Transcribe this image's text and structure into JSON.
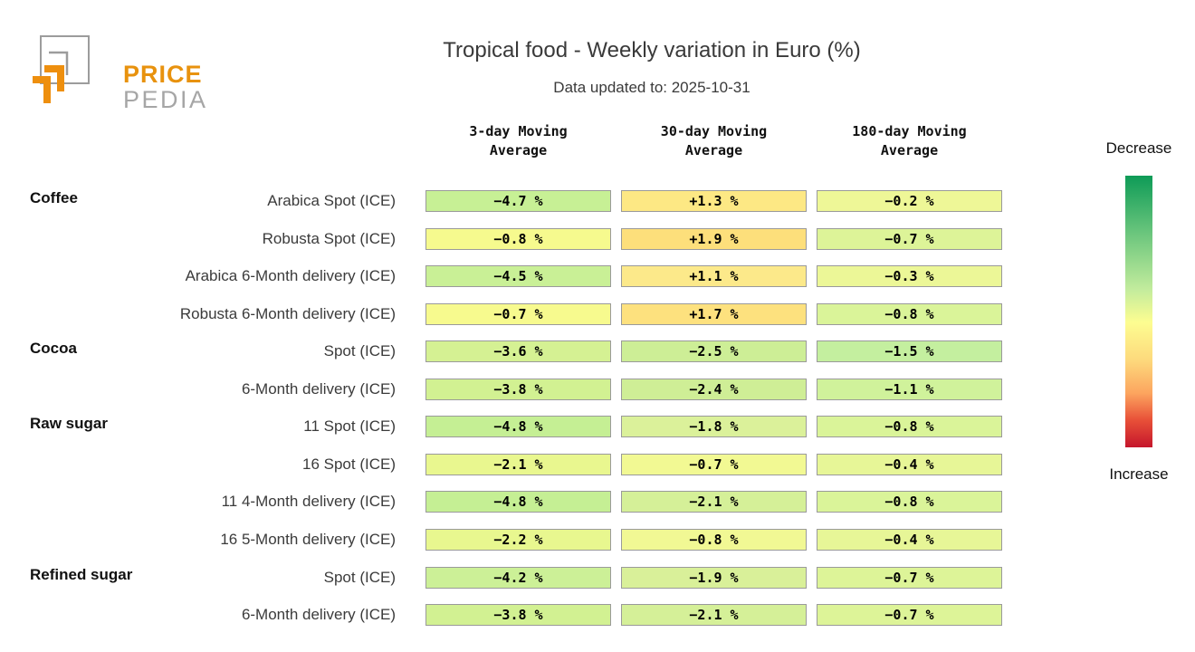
{
  "logo": {
    "brand_top": "PRICE",
    "brand_bottom": "PEDIA",
    "brand_color": "#e8920e",
    "brand_gray": "#a6a6a6"
  },
  "header": {
    "title": "Tropical food - Weekly variation in Euro (%)",
    "subtitle": "Data updated to: 2025-10-31"
  },
  "legend": {
    "top_label": "Decrease",
    "bottom_label": "Increase",
    "gradient_stops": [
      "#0e9b57 0%",
      "#6ec77e 22%",
      "#c3ec9d 42%",
      "#fdfd91 54%",
      "#fdd97c 68%",
      "#fca55f 80%",
      "#e85038 90%",
      "#c5162c 100%"
    ]
  },
  "chart_data": {
    "type": "heatmap",
    "title": "Tropical food - Weekly variation in Euro (%)",
    "subtitle": "Data updated to: 2025-10-31",
    "columns": [
      "3-day Moving\nAverage",
      "30-day Moving\nAverage",
      "180-day Moving\nAverage"
    ],
    "legend": {
      "top": "Decrease",
      "bottom": "Increase"
    },
    "rows": [
      {
        "group": "Coffee",
        "label": "Arabica Spot (ICE)",
        "values": [
          -4.7,
          1.3,
          -0.2
        ],
        "display": [
          "−4.7 %",
          "+1.3 %",
          "−0.2 %"
        ],
        "colors": [
          "#c7f095",
          "#fde884",
          "#eef797"
        ]
      },
      {
        "group": "",
        "label": "Robusta Spot (ICE)",
        "values": [
          -0.8,
          1.9,
          -0.7
        ],
        "display": [
          "−0.8 %",
          "+1.9 %",
          "−0.7 %"
        ],
        "colors": [
          "#f6fa8e",
          "#fddf7b",
          "#ddf498"
        ]
      },
      {
        "group": "",
        "label": "Arabica 6-Month delivery (ICE)",
        "values": [
          -4.5,
          1.1,
          -0.3
        ],
        "display": [
          "−4.5 %",
          "+1.1 %",
          "−0.3 %"
        ],
        "colors": [
          "#c9f096",
          "#fce98a",
          "#ecf797"
        ]
      },
      {
        "group": "",
        "label": "Robusta 6-Month delivery (ICE)",
        "values": [
          -0.7,
          1.7,
          -0.8
        ],
        "display": [
          "−0.7 %",
          "+1.7 %",
          "−0.8 %"
        ],
        "colors": [
          "#f7fa8e",
          "#fde17e",
          "#daf499"
        ]
      },
      {
        "group": "Cocoa",
        "label": "Spot (ICE)",
        "values": [
          -3.6,
          -2.5,
          -1.5
        ],
        "display": [
          "−3.6 %",
          "−2.5 %",
          "−1.5 %"
        ],
        "colors": [
          "#d5f193",
          "#cdee96",
          "#c4ef9f"
        ]
      },
      {
        "group": "",
        "label": "6-Month delivery (ICE)",
        "values": [
          -3.8,
          -2.4,
          -1.1
        ],
        "display": [
          "−3.8 %",
          "−2.4 %",
          "−1.1 %"
        ],
        "colors": [
          "#d2f192",
          "#cfee96",
          "#d0f29b"
        ]
      },
      {
        "group": "Raw sugar",
        "label": "11 Spot (ICE)",
        "values": [
          -4.8,
          -1.8,
          -0.8
        ],
        "display": [
          "−4.8 %",
          "−1.8 %",
          "−0.8 %"
        ],
        "colors": [
          "#c5ef94",
          "#dbf19a",
          "#daf499"
        ]
      },
      {
        "group": "",
        "label": "16 Spot (ICE)",
        "values": [
          -2.1,
          -0.7,
          -0.4
        ],
        "display": [
          "−2.1 %",
          "−0.7 %",
          "−0.4 %"
        ],
        "colors": [
          "#e9f78f",
          "#f2f993",
          "#e7f697"
        ]
      },
      {
        "group": "",
        "label": "11 4-Month delivery (ICE)",
        "values": [
          -4.8,
          -2.1,
          -0.8
        ],
        "display": [
          "−4.8 %",
          "−2.1 %",
          "−0.8 %"
        ],
        "colors": [
          "#c5ef94",
          "#d5f098",
          "#daf499"
        ]
      },
      {
        "group": "",
        "label": "16 5-Month delivery (ICE)",
        "values": [
          -2.2,
          -0.8,
          -0.4
        ],
        "display": [
          "−2.2 %",
          "−0.8 %",
          "−0.4 %"
        ],
        "colors": [
          "#e8f78f",
          "#f1f894",
          "#e7f697"
        ]
      },
      {
        "group": "Refined sugar",
        "label": "Spot (ICE)",
        "values": [
          -4.2,
          -1.9,
          -0.7
        ],
        "display": [
          "−4.2 %",
          "−1.9 %",
          "−0.7 %"
        ],
        "colors": [
          "#ccf097",
          "#d9f099",
          "#ddf498"
        ]
      },
      {
        "group": "",
        "label": "6-Month delivery (ICE)",
        "values": [
          -3.8,
          -2.1,
          -0.7
        ],
        "display": [
          "−3.8 %",
          "−2.1 %",
          "−0.7 %"
        ],
        "colors": [
          "#d2f192",
          "#d5f098",
          "#ddf498"
        ]
      }
    ]
  }
}
